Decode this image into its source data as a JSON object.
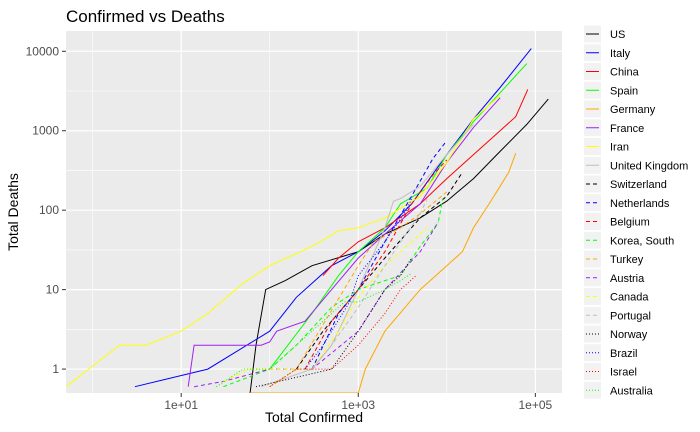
{
  "chart_data": {
    "type": "line",
    "title": "Confirmed vs Deaths",
    "xlabel": "Total Confirmed",
    "ylabel": "Total Deaths",
    "x_scale": "log10",
    "y_scale": "log10",
    "xlim": [
      0.5,
      200000
    ],
    "ylim": [
      0.5,
      18000
    ],
    "x_ticks": [
      {
        "value": 10,
        "label": "1e+01"
      },
      {
        "value": 1000,
        "label": "1e+03"
      },
      {
        "value": 100000,
        "label": "1e+05"
      }
    ],
    "y_ticks": [
      {
        "value": 1,
        "label": "1"
      },
      {
        "value": 10,
        "label": "10"
      },
      {
        "value": 100,
        "label": "100"
      },
      {
        "value": 1000,
        "label": "1000"
      },
      {
        "value": 10000,
        "label": "10000"
      }
    ],
    "grid": true,
    "panel_background": "#ebebeb",
    "legend_position": "right",
    "series": [
      {
        "name": "US",
        "color": "#000000",
        "dash": "solid",
        "x": [
          60,
          70,
          90,
          150,
          300,
          1000,
          2000,
          5000,
          10000,
          20000,
          40000,
          80000,
          140000
        ],
        "y": [
          0.5,
          2,
          10,
          13,
          20,
          30,
          50,
          80,
          130,
          250,
          550,
          1200,
          2500
        ]
      },
      {
        "name": "Italy",
        "color": "#0000ff",
        "dash": "solid",
        "x": [
          3,
          20,
          100,
          200,
          500,
          1000,
          2000,
          4000,
          10000,
          20000,
          40000,
          90000
        ],
        "y": [
          0.6,
          1,
          3,
          8,
          20,
          30,
          55,
          120,
          500,
          1400,
          3500,
          10800
        ]
      },
      {
        "name": "China",
        "color": "#ff0000",
        "dash": "solid",
        "x": [
          400,
          600,
          1000,
          2000,
          5000,
          10000,
          20000,
          40000,
          60000,
          80000,
          82000
        ],
        "y": [
          15,
          25,
          40,
          60,
          120,
          250,
          500,
          1000,
          1500,
          3100,
          3300
        ]
      },
      {
        "name": "Spain",
        "color": "#00ff00",
        "dash": "solid",
        "x": [
          100,
          300,
          600,
          1000,
          2000,
          3000,
          6000,
          10000,
          20000,
          40000,
          80000
        ],
        "y": [
          1,
          5,
          15,
          30,
          60,
          120,
          190,
          500,
          1300,
          3000,
          7000
        ]
      },
      {
        "name": "Germany",
        "color": "#ffa500",
        "dash": "solid",
        "x": [
          60,
          1000,
          1200,
          2000,
          5000,
          10000,
          15000,
          20000,
          30000,
          40000,
          50000,
          60000
        ],
        "y": [
          0.5,
          0.5,
          1,
          3,
          10,
          20,
          30,
          60,
          120,
          200,
          300,
          520
        ]
      },
      {
        "name": "France",
        "color": "#a020f0",
        "dash": "solid",
        "x": [
          12,
          14,
          80,
          100,
          120,
          250,
          500,
          1000,
          2000,
          5000,
          10000,
          20000,
          40000
        ],
        "y": [
          0.6,
          2,
          2,
          2.2,
          3,
          4,
          10,
          25,
          50,
          120,
          400,
          1100,
          2600
        ]
      },
      {
        "name": "Iran",
        "color": "#ffff00",
        "dash": "solid",
        "x": [
          0.5,
          2,
          4,
          10,
          20,
          50,
          100,
          300,
          600,
          1000,
          2000,
          5000,
          10000,
          20000,
          40000
        ],
        "y": [
          0.6,
          2,
          2,
          3,
          5,
          12,
          20,
          35,
          55,
          60,
          80,
          150,
          400,
          1400,
          2800
        ]
      },
      {
        "name": "United Kingdom",
        "color": "#bebebe",
        "dash": "solid",
        "x": [
          80,
          300,
          500,
          1000,
          2000,
          2500,
          3000,
          5000,
          10000,
          20000
        ],
        "y": [
          0.6,
          1,
          2,
          10,
          60,
          130,
          140,
          200,
          500,
          1200
        ]
      },
      {
        "name": "Switzerland",
        "color": "#000000",
        "dash": "dashed",
        "x": [
          200,
          400,
          1000,
          2000,
          5000,
          10000,
          15000
        ],
        "y": [
          1,
          3,
          10,
          25,
          80,
          150,
          300
        ]
      },
      {
        "name": "Netherlands",
        "color": "#0000ff",
        "dash": "dashed",
        "x": [
          300,
          600,
          1000,
          2000,
          4000,
          7000,
          10000
        ],
        "y": [
          1,
          5,
          10,
          40,
          150,
          450,
          750
        ]
      },
      {
        "name": "Belgium",
        "color": "#ff0000",
        "dash": "dashed",
        "x": [
          250,
          500,
          1000,
          2000,
          4000,
          7000,
          10000
        ],
        "y": [
          1,
          4,
          10,
          30,
          120,
          280,
          430
        ]
      },
      {
        "name": "Korea, South",
        "color": "#00ff00",
        "dash": "dashed",
        "x": [
          30,
          100,
          200,
          500,
          1000,
          2000,
          3000,
          5000,
          8000,
          9000
        ],
        "y": [
          0.6,
          1,
          2,
          6,
          10,
          13,
          15,
          35,
          70,
          140
        ]
      },
      {
        "name": "Turkey",
        "color": "#ffa500",
        "dash": "dashed",
        "x": [
          100,
          200,
          1000,
          1500,
          3000,
          5000,
          10000
        ],
        "y": [
          0.6,
          1,
          20,
          40,
          60,
          90,
          170
        ]
      },
      {
        "name": "Austria",
        "color": "#a020f0",
        "dash": "dashed",
        "x": [
          14,
          30,
          100,
          300,
          1000,
          2000,
          5000,
          8000
        ],
        "y": [
          0.6,
          0.7,
          1,
          1,
          3,
          10,
          30,
          70
        ]
      },
      {
        "name": "Canada",
        "color": "#ffff00",
        "dash": "dashed",
        "x": [
          30,
          60,
          100,
          300,
          600,
          1000,
          2000,
          4000,
          6000
        ],
        "y": [
          0.7,
          1,
          1,
          1,
          3,
          8,
          20,
          40,
          60
        ]
      },
      {
        "name": "Portugal",
        "color": "#bebebe",
        "dash": "dashed",
        "x": [
          300,
          500,
          1000,
          2000,
          3000,
          5000,
          6000
        ],
        "y": [
          1,
          2,
          6,
          20,
          40,
          90,
          140
        ]
      },
      {
        "name": "Norway",
        "color": "#000000",
        "dash": "dotted",
        "x": [
          70,
          500,
          1000,
          2000,
          3000,
          4000
        ],
        "y": [
          0.6,
          1,
          3,
          10,
          15,
          25
        ]
      },
      {
        "name": "Brazil",
        "color": "#0000ff",
        "dash": "dotted",
        "x": [
          250,
          400,
          800,
          1000,
          2000,
          3500,
          4000
        ],
        "y": [
          1,
          2,
          7,
          15,
          40,
          100,
          140
        ]
      },
      {
        "name": "Israel",
        "color": "#ff0000",
        "dash": "dotted",
        "x": [
          100,
          200,
          500,
          1000,
          2000,
          3000,
          4500
        ],
        "y": [
          0.6,
          1,
          1,
          2,
          5,
          10,
          15
        ]
      },
      {
        "name": "Australia",
        "color": "#00ff00",
        "dash": "dotted",
        "x": [
          25,
          50,
          100,
          300,
          700,
          1000,
          2000,
          3000,
          4000
        ],
        "y": [
          0.6,
          1,
          1,
          3,
          7,
          7,
          10,
          13,
          16
        ]
      }
    ]
  }
}
